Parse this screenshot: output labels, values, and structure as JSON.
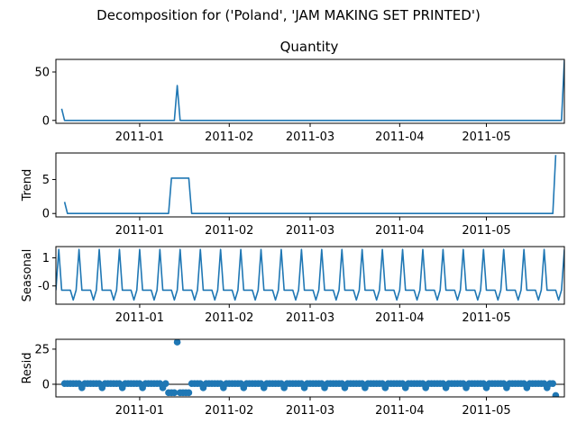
{
  "figure": {
    "suptitle": "Decomposition for ('Poland', 'JAM MAKING SET PRINTED')",
    "date_ticks": [
      "2011-01",
      "2011-02",
      "2011-03",
      "2011-04",
      "2011-05"
    ]
  },
  "chart_data": [
    {
      "type": "line",
      "title": "Quantity",
      "ylabel": "",
      "ylim": [
        -3,
        63
      ],
      "yticks": [
        "0",
        "50"
      ],
      "series": [
        {
          "x": [
            "2010-12-05",
            "2010-12-06",
            "2011-01-13",
            "2011-01-14",
            "2011-01-15",
            "2011-01-16",
            "2011-05-27",
            "2011-05-28"
          ],
          "y": [
            12,
            0,
            0,
            36,
            0,
            0,
            0,
            62
          ]
        }
      ]
    },
    {
      "type": "line",
      "title": "",
      "ylabel": "Trend",
      "ylim": [
        -0.5,
        8.9
      ],
      "yticks": [
        "0",
        "5"
      ],
      "series": [
        {
          "x": [
            "2010-12-06",
            "2010-12-07",
            "2011-01-11",
            "2011-01-12",
            "2011-01-18",
            "2011-01-19",
            "2011-05-24",
            "2011-05-25"
          ],
          "y": [
            1.7,
            0,
            0,
            5.2,
            5.2,
            0,
            0,
            8.6
          ]
        }
      ]
    },
    {
      "type": "line",
      "title": "",
      "ylabel": "Seasonal",
      "ylim": [
        -0.65,
        1.4
      ],
      "yticks": [
        "-0",
        "1"
      ],
      "period": 7,
      "series": [
        {
          "pattern": [
            -0.15,
            1.3,
            -0.15,
            -0.15,
            -0.15,
            -0.15,
            -0.5
          ],
          "start": "2010-12-03",
          "end": "2011-05-28"
        }
      ]
    },
    {
      "type": "scatter",
      "title": "",
      "ylabel": "Resid",
      "ylim": [
        -9,
        32
      ],
      "yticks": [
        "0",
        "25"
      ],
      "zero_line": true,
      "series": [
        {
          "baseline": 0.5,
          "start": "2010-12-06",
          "end": "2011-05-25",
          "dips": [
            {
              "x": "2011-01-11",
              "y": -6
            },
            {
              "x": "2011-01-12",
              "y": -6
            },
            {
              "x": "2011-01-13",
              "y": -6
            },
            {
              "x": "2011-01-15",
              "y": -6
            },
            {
              "x": "2011-01-16",
              "y": -6
            },
            {
              "x": "2011-01-17",
              "y": -6
            },
            {
              "x": "2011-01-18",
              "y": -6
            }
          ],
          "outliers": [
            {
              "x": "2011-01-14",
              "y": 30
            },
            {
              "x": "2011-05-25",
              "y": -8
            }
          ]
        }
      ]
    }
  ],
  "colors": {
    "series": "#1f77b4",
    "axis": "#000000",
    "zeroline": "#000000"
  }
}
